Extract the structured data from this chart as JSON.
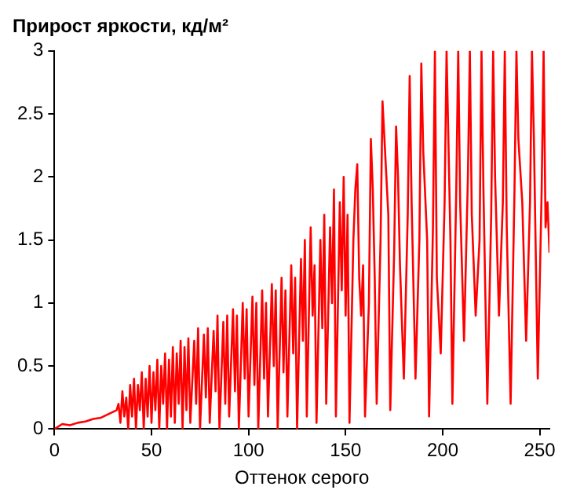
{
  "chart_data": {
    "type": "line",
    "ylabel": "Прирост яркости, кд/м²",
    "xlabel": "Оттенок серого",
    "xlim": [
      0,
      255
    ],
    "xticks": [
      0,
      50,
      100,
      150,
      200,
      250
    ],
    "ylim": [
      0,
      3
    ],
    "yticks": [
      0,
      0.5,
      1,
      1.5,
      2,
      2.5,
      3
    ],
    "grid": false,
    "legend": false,
    "marker": "none",
    "line_style": "solid",
    "x": [
      0,
      4,
      8,
      12,
      16,
      20,
      24,
      28,
      32,
      33,
      34,
      35,
      36,
      37,
      38,
      39,
      40,
      41,
      42,
      43,
      44,
      45,
      46,
      47,
      48,
      49,
      50,
      51,
      52,
      53,
      54,
      55,
      56,
      57,
      58,
      59,
      60,
      61,
      62,
      63,
      64,
      65,
      66,
      67,
      68,
      69,
      70,
      72,
      73,
      74,
      75,
      77,
      78,
      79,
      80,
      82,
      83,
      84,
      85,
      87,
      88,
      89,
      90,
      92,
      93,
      94,
      95,
      97,
      98,
      99,
      100,
      102,
      103,
      104,
      105,
      107,
      108,
      109,
      110,
      112,
      113,
      114,
      115,
      117,
      118,
      119,
      120,
      122,
      123,
      124,
      125,
      127,
      128,
      129,
      130,
      132,
      133,
      134,
      135,
      137,
      138,
      139,
      140,
      142,
      143,
      144,
      145,
      147,
      148,
      149,
      150,
      151,
      152,
      154,
      155,
      156,
      157,
      158,
      159,
      160,
      162,
      163,
      164,
      165,
      166,
      168,
      169,
      170,
      172,
      173,
      175,
      176,
      177,
      178,
      180,
      182,
      183,
      184,
      186,
      188,
      189,
      190,
      192,
      193,
      195,
      196,
      197,
      199,
      201,
      202,
      204,
      205,
      207,
      208,
      209,
      211,
      213,
      214,
      215,
      217,
      219,
      220,
      221,
      223,
      225,
      226,
      227,
      229,
      231,
      232,
      233,
      235,
      237,
      238,
      239,
      241,
      243,
      245,
      246,
      247,
      249,
      251,
      252,
      253,
      254,
      255
    ],
    "series": [
      {
        "color": "#ff0000",
        "values": [
          0,
          0.04,
          0.03,
          0.05,
          0.06,
          0.08,
          0.09,
          0.12,
          0.15,
          0.2,
          0.05,
          0.3,
          0.1,
          0.25,
          0,
          0.35,
          0.1,
          0.4,
          0,
          0.35,
          0.15,
          0.45,
          0,
          0.4,
          0.1,
          0.5,
          0.05,
          0.45,
          0.15,
          0.55,
          0,
          0.5,
          0.2,
          0.6,
          0,
          0.55,
          0.1,
          0.65,
          0.05,
          0.6,
          0.2,
          0.7,
          0,
          0.65,
          0.15,
          0.72,
          0.05,
          0.7,
          0.2,
          0.8,
          0,
          0.75,
          0.25,
          0.8,
          0.05,
          0.78,
          0.3,
          0.9,
          0,
          0.85,
          0.2,
          0.9,
          0.1,
          0.95,
          0.3,
          0.9,
          0,
          1,
          0.4,
          0.95,
          0.1,
          1.05,
          0.35,
          1,
          0,
          1.1,
          0.4,
          1,
          0.1,
          1.15,
          0.5,
          1.1,
          0,
          1.2,
          0.45,
          1.1,
          0.1,
          1.3,
          0.6,
          1.2,
          0,
          1.35,
          0.7,
          1.5,
          0.1,
          1.6,
          0.9,
          1.3,
          0.05,
          1.5,
          0.8,
          1.7,
          0.2,
          1.6,
          1,
          1.9,
          0.1,
          1.8,
          1.1,
          2,
          0.9,
          1.7,
          0.05,
          1.5,
          1.9,
          2.1,
          1.2,
          0.9,
          1.3,
          0.1,
          1,
          2.3,
          1.9,
          1.2,
          0.2,
          1.5,
          2.6,
          2.3,
          1.7,
          0.15,
          1.4,
          2.4,
          2,
          1.3,
          0.4,
          1.7,
          2.8,
          1.8,
          0.4,
          1.5,
          2.9,
          2.2,
          1.5,
          0.1,
          1.6,
          3,
          1.2,
          0.6,
          1.8,
          3,
          1.5,
          0.2,
          1.9,
          3,
          1.8,
          0.7,
          2,
          3,
          1.7,
          0.9,
          1.5,
          3,
          1.9,
          0.2,
          1.7,
          3,
          2,
          0.9,
          1.8,
          3,
          1.6,
          0.2,
          1.9,
          3,
          2.3,
          1.8,
          0.7,
          1.8,
          3,
          2.3,
          0.4,
          1.9,
          3,
          1.6,
          1.8,
          1.4
        ]
      }
    ]
  }
}
